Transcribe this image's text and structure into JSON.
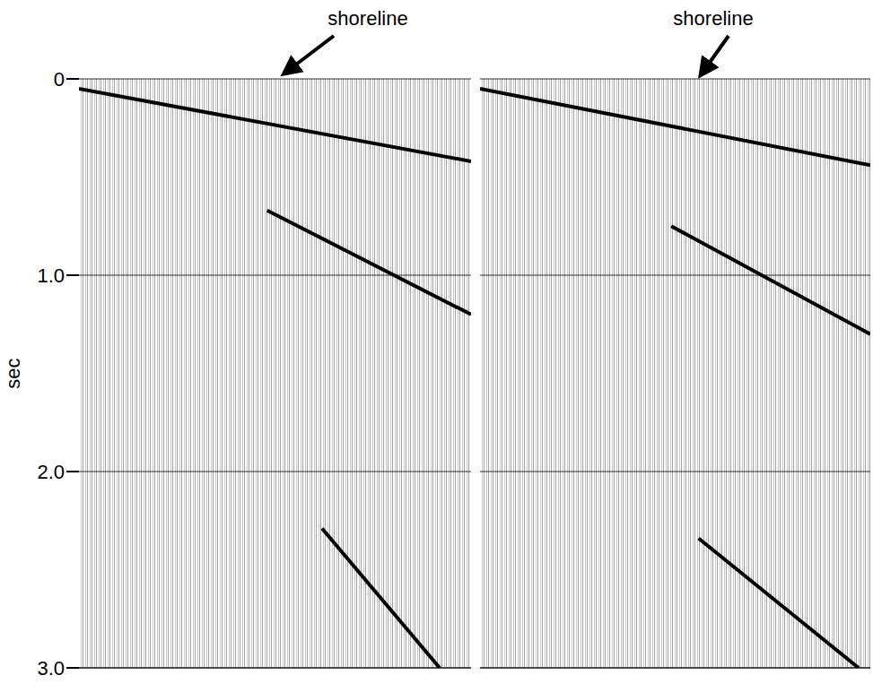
{
  "chart_data": [
    {
      "type": "line",
      "annotation": "shoreline",
      "y_label": "sec",
      "xlim": [
        0,
        100
      ],
      "ylim": [
        0,
        3
      ],
      "yticks": [
        0,
        {
          "value": 1,
          "label": "1.0"
        },
        {
          "value": 2,
          "label": "2.0"
        },
        {
          "value": 3,
          "label": "3.0"
        }
      ],
      "grid": true,
      "tick_labels": "y",
      "series": [
        {
          "color": "#000000",
          "x": [
            0,
            100
          ],
          "values": [
            0.05,
            0.42
          ]
        },
        {
          "color": "#000000",
          "x": [
            48,
            100
          ],
          "values": [
            0.67,
            1.2
          ]
        },
        {
          "color": "#000000",
          "x": [
            62,
            92
          ],
          "values": [
            2.29,
            3.0
          ]
        }
      ]
    },
    {
      "type": "line",
      "annotation": "shoreline",
      "xlim": [
        0,
        100
      ],
      "ylim": [
        0,
        3
      ],
      "yticks": [
        0,
        {
          "value": 1,
          "label": "1.0"
        },
        {
          "value": 2,
          "label": "2.0"
        },
        {
          "value": 3,
          "label": "3.0"
        }
      ],
      "grid": true,
      "tick_labels": false,
      "series": [
        {
          "color": "#000000",
          "x": [
            0,
            100
          ],
          "values": [
            0.05,
            0.44
          ]
        },
        {
          "color": "#000000",
          "x": [
            49,
            100
          ],
          "values": [
            0.75,
            1.3
          ]
        },
        {
          "color": "#000000",
          "x": [
            56,
            97
          ],
          "values": [
            2.34,
            3.0
          ]
        }
      ]
    }
  ]
}
